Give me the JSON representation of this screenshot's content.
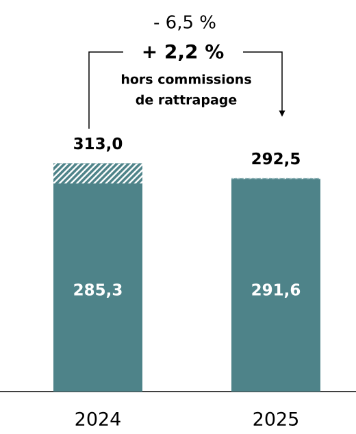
{
  "chart_data": {
    "type": "stacked-bar",
    "categories": [
      "2024",
      "2025"
    ],
    "series": [
      {
        "color": "#4e8389",
        "values": [
          285.3,
          291.6
        ],
        "value_labels": [
          "285,3",
          "291,6"
        ]
      },
      {
        "color": "#4e8389",
        "hatched": true,
        "values": [
          27.7,
          0.9
        ]
      }
    ],
    "totals": [
      313.0,
      292.5
    ],
    "total_labels": [
      "313,0",
      "292,5"
    ],
    "annotations": {
      "change": "- 6,5 %",
      "change_adjusted": "+ 2,2 %",
      "note": [
        "hors commissions",
        "de rattrapage"
      ]
    }
  }
}
